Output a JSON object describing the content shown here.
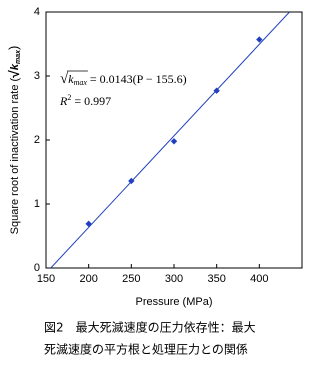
{
  "chart_data": {
    "type": "scatter",
    "x": [
      200,
      250,
      300,
      350,
      400
    ],
    "values": [
      0.69,
      1.36,
      1.98,
      2.77,
      3.57
    ],
    "color": "#1f3fbf",
    "fit_line": {
      "x": [
        155.6,
        435.3
      ],
      "values": [
        0,
        4
      ],
      "color": "#1f3fbf"
    },
    "xlim": [
      150,
      450
    ],
    "xticks": [
      150,
      200,
      250,
      300,
      350,
      400
    ],
    "ylim": [
      0,
      4
    ],
    "yticks": [
      0,
      1,
      2,
      3,
      4
    ],
    "x_label": "Pressure (MPa)",
    "y_label": [
      "Square root of inactivation rate (",
      "√",
      "k",
      "max",
      ")"
    ],
    "equation": [
      "√",
      "k",
      "max",
      " = 0.0143(P − 155.6)"
    ],
    "r_squared": [
      "R",
      "2",
      " = 0.997"
    ],
    "caption": [
      "図2　最大死滅速度の圧力依存性：最大",
      "死滅速度の平方根と処理圧力との関係"
    ]
  }
}
